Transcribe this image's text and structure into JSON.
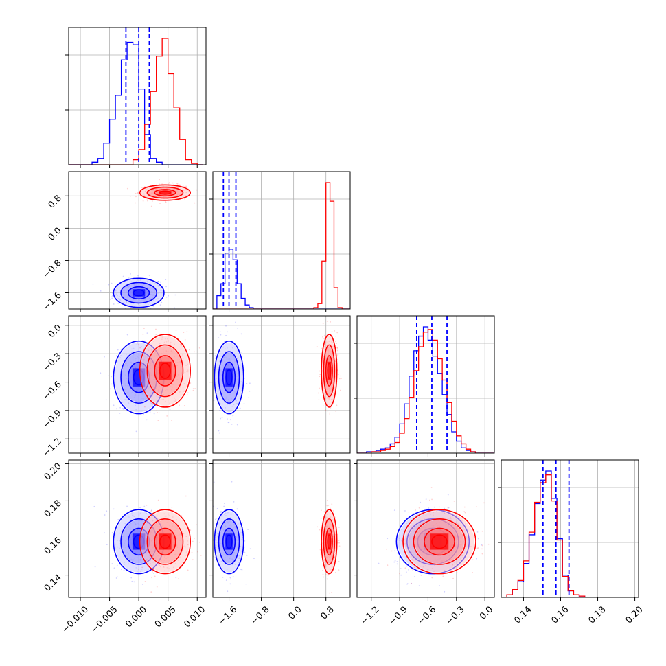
{
  "colors": {
    "blue": "#0000ff",
    "red": "#ff0000",
    "grid": "#b0b0b0",
    "axis": "#000000"
  },
  "chart_data": {
    "type": "corner",
    "grid": true,
    "params": [
      {
        "xlim": [
          -0.012,
          0.0115
        ],
        "ticks": [
          -0.01,
          -0.005,
          0.0,
          0.005,
          0.01
        ],
        "tick_labels": [
          "−0.010",
          "−0.005",
          "0.000",
          "0.005",
          "0.010"
        ]
      },
      {
        "xlim": [
          -2.0,
          1.4
        ],
        "ticks": [
          -1.6,
          -0.8,
          0.0,
          0.8
        ],
        "tick_labels": [
          "−1.6",
          "−0.8",
          "0.0",
          "0.8"
        ]
      },
      {
        "xlim": [
          -1.35,
          0.1
        ],
        "ticks": [
          -1.2,
          -0.9,
          -0.6,
          -0.3,
          0.0
        ],
        "tick_labels": [
          "−1.2",
          "−0.9",
          "−0.6",
          "−0.3",
          "0.0"
        ]
      },
      {
        "xlim": [
          0.128,
          0.202
        ],
        "ticks": [
          0.14,
          0.16,
          0.18,
          0.2
        ],
        "tick_labels": [
          "0.14",
          "0.16",
          "0.18",
          "0.20"
        ]
      }
    ],
    "series": [
      {
        "color": "blue",
        "means": [
          0.0,
          -1.6,
          -0.55,
          0.158
        ],
        "sigmas": [
          0.0018,
          0.15,
          0.16,
          0.0072
        ],
        "quantiles": [
          [
            -0.0022,
            0.0,
            0.0018
          ],
          [
            -1.74,
            -1.6,
            -1.43
          ],
          [
            -0.72,
            -0.56,
            -0.4
          ],
          [
            0.1505,
            0.1575,
            0.1645
          ]
        ]
      },
      {
        "color": "red",
        "means": [
          0.0045,
          0.88,
          -0.48,
          0.158
        ],
        "sigmas": [
          0.0018,
          0.08,
          0.16,
          0.0072
        ],
        "quantiles": []
      }
    ],
    "correlations": {
      "3_2_blue": 0.15,
      "3_2_red": 0.1
    },
    "hist1d": {
      "p0": {
        "bins": [
          -0.012,
          -0.011,
          -0.01,
          -0.009,
          -0.008,
          -0.007,
          -0.006,
          -0.005,
          -0.004,
          -0.003,
          -0.002,
          -0.001,
          0.0,
          0.001,
          0.002,
          0.003,
          0.004,
          0.005,
          0.006,
          0.007,
          0.008,
          0.009,
          0.01,
          0.011
        ],
        "blue": [
          0,
          0,
          0,
          0,
          0.02,
          0.05,
          0.17,
          0.36,
          0.55,
          0.83,
          0.97,
          0.95,
          0.6,
          0.24,
          0.05,
          0.02,
          0,
          0,
          0,
          0,
          0,
          0,
          0
        ],
        "red": [
          0,
          0,
          0,
          0,
          0,
          0,
          0,
          0,
          0,
          0,
          0,
          0.04,
          0.12,
          0.32,
          0.58,
          0.86,
          1.0,
          0.72,
          0.45,
          0.2,
          0.04,
          0.01,
          0
        ]
      },
      "p1": {
        "bins": [
          -2.0,
          -1.9,
          -1.8,
          -1.7,
          -1.6,
          -1.5,
          -1.4,
          -1.3,
          -1.2,
          -1.1,
          -1.0,
          -0.9,
          -0.8,
          -0.7,
          -0.6,
          -0.5,
          -0.4,
          -0.3,
          -0.2,
          -0.1,
          0.0,
          0.1,
          0.2,
          0.3,
          0.4,
          0.5,
          0.6,
          0.7,
          0.8,
          0.9,
          1.0,
          1.1,
          1.2,
          1.3,
          1.4
        ],
        "blue": [
          0,
          0.1,
          0.19,
          0.42,
          0.45,
          0.37,
          0.19,
          0.08,
          0.03,
          0.01,
          0,
          0,
          0,
          0,
          0,
          0,
          0,
          0,
          0,
          0,
          0,
          0,
          0,
          0,
          0,
          0,
          0,
          0,
          0,
          0,
          0,
          0,
          0,
          0
        ],
        "red": [
          0,
          0,
          0,
          0,
          0,
          0,
          0,
          0,
          0,
          0,
          0,
          0,
          0,
          0,
          0,
          0,
          0,
          0,
          0,
          0,
          0,
          0,
          0,
          0,
          0,
          0.01,
          0.04,
          0.36,
          0.95,
          0.81,
          0.16,
          0.01,
          0,
          0
        ]
      },
      "p2": {
        "bins": [
          -1.35,
          -1.3,
          -1.25,
          -1.2,
          -1.15,
          -1.1,
          -1.05,
          -1.0,
          -0.95,
          -0.9,
          -0.85,
          -0.8,
          -0.75,
          -0.7,
          -0.65,
          -0.6,
          -0.55,
          -0.5,
          -0.45,
          -0.4,
          -0.35,
          -0.3,
          -0.25,
          -0.2,
          -0.15,
          -0.1,
          -0.05,
          0.0,
          0.05,
          0.1
        ],
        "blue": [
          0,
          0,
          0.01,
          0.01,
          0.02,
          0.03,
          0.04,
          0.07,
          0.12,
          0.22,
          0.37,
          0.58,
          0.77,
          0.88,
          0.95,
          0.85,
          0.73,
          0.6,
          0.44,
          0.29,
          0.16,
          0.09,
          0.04,
          0.02,
          0.01,
          0,
          0,
          0,
          0
        ],
        "red": [
          0,
          0,
          0,
          0.01,
          0.01,
          0.02,
          0.03,
          0.05,
          0.08,
          0.15,
          0.26,
          0.42,
          0.62,
          0.8,
          0.91,
          0.93,
          0.85,
          0.71,
          0.55,
          0.38,
          0.24,
          0.13,
          0.07,
          0.03,
          0.01,
          0,
          0,
          0,
          0
        ]
      },
      "p3": {
        "bins": [
          0.128,
          0.131,
          0.134,
          0.137,
          0.14,
          0.143,
          0.146,
          0.149,
          0.152,
          0.155,
          0.158,
          0.161,
          0.164,
          0.167,
          0.17,
          0.173,
          0.176,
          0.179,
          0.182,
          0.185,
          0.188,
          0.191,
          0.194,
          0.197,
          0.2,
          0.203
        ],
        "blue": [
          0,
          0.02,
          0.06,
          0.12,
          0.26,
          0.48,
          0.72,
          0.9,
          0.97,
          0.76,
          0.45,
          0.17,
          0.05,
          0.02,
          0.01,
          0,
          0,
          0,
          0,
          0,
          0,
          0,
          0,
          0,
          0
        ],
        "red": [
          0,
          0.02,
          0.06,
          0.13,
          0.28,
          0.5,
          0.73,
          0.88,
          0.94,
          0.74,
          0.44,
          0.16,
          0.05,
          0.02,
          0.01,
          0,
          0,
          0,
          0,
          0,
          0,
          0,
          0,
          0,
          0
        ]
      }
    }
  }
}
